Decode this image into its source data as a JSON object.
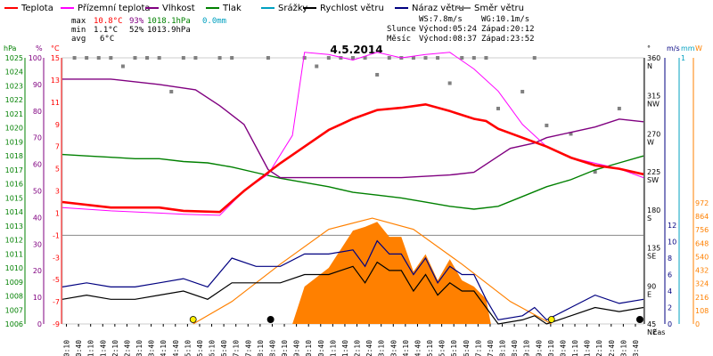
{
  "chart_data": {
    "type": "line",
    "title": "4.5.2014",
    "legend": [
      {
        "label": "Teplota",
        "color": "#ff0000"
      },
      {
        "label": "Přízemní teplota",
        "color": "#ff00ff"
      },
      {
        "label": "Vlhkost",
        "color": "#800080"
      },
      {
        "label": "Tlak",
        "color": "#008000"
      },
      {
        "label": "Srážky",
        "color": "#00a0c0"
      },
      {
        "label": "Rychlost větru",
        "color": "#000000"
      },
      {
        "label": "Náraz větru",
        "color": "#000080"
      },
      {
        "label": "Směr větru",
        "color": "#808080"
      }
    ],
    "stats": {
      "max": {
        "label": "max",
        "temp": "10.8°C",
        "hum": "93%",
        "press": "1018.1hPa",
        "rain": "0.0mm"
      },
      "min": {
        "label": "min",
        "temp": "1.1°C",
        "hum": "52%",
        "press": "1013.9hPa"
      },
      "avg": {
        "label": "avg",
        "temp": "6°C"
      }
    },
    "wind_info": {
      "ws": "WS:7.8m/s",
      "wg": "WG:10.1m/s"
    },
    "sun": {
      "label": "Slunce",
      "rise": "Východ:05:24",
      "set": "Západ:20:12"
    },
    "moon": {
      "label": "Měsíc",
      "rise": "Východ:08:37",
      "set": "Západ:23:52"
    },
    "axes": {
      "hpa": {
        "label": "hPa",
        "ticks": [
          "1025",
          "1024",
          "1023",
          "1022",
          "1021",
          "1020",
          "1019",
          "1018",
          "1017",
          "1016",
          "1015",
          "1014",
          "1013",
          "1012",
          "1011",
          "1010",
          "1009",
          "1008",
          "1007",
          "1006"
        ]
      },
      "pct": {
        "label": "%",
        "ticks": [
          "100",
          "90",
          "80",
          "70",
          "60",
          "50",
          "40",
          "30",
          "20",
          "10",
          "0"
        ]
      },
      "degc": {
        "label": "°C",
        "ticks": [
          "15",
          "13",
          "11",
          "9",
          "7",
          "5",
          "3",
          "1",
          "-1",
          "-3",
          "-5",
          "-7",
          "-9"
        ],
        "range": [
          -9,
          15
        ]
      },
      "deg": {
        "label": "°",
        "ticks": [
          "360",
          "315",
          "270",
          "225",
          "180",
          "135",
          "90",
          "45"
        ],
        "dirs": [
          "N",
          "NW",
          "W",
          "SW",
          "S",
          "SE",
          "E",
          "NE"
        ]
      },
      "ms": {
        "label": "m/s",
        "ticks": [
          "12",
          "10",
          "8",
          "6",
          "4",
          "2",
          "0"
        ]
      },
      "mm": {
        "label": "mm",
        "ticks": [
          "1"
        ]
      },
      "wm2": {
        "label": "W",
        "ticks": [
          "972",
          "864",
          "756",
          "648",
          "540",
          "432",
          "324",
          "216",
          "108",
          "0"
        ]
      },
      "x_label": "čas",
      "x_ticks": [
        "00:10",
        "00:40",
        "01:10",
        "01:40",
        "02:10",
        "02:40",
        "03:10",
        "03:40",
        "04:10",
        "04:40",
        "05:10",
        "05:40",
        "06:10",
        "06:40",
        "07:10",
        "07:40",
        "08:10",
        "08:40",
        "09:10",
        "09:40",
        "10:10",
        "10:40",
        "11:10",
        "11:40",
        "12:10",
        "12:40",
        "13:10",
        "13:40",
        "14:10",
        "14:40",
        "15:10",
        "15:40",
        "16:10",
        "16:40",
        "17:10",
        "17:40",
        "18:10",
        "18:40",
        "19:10",
        "19:40",
        "20:10",
        "20:40",
        "21:10",
        "21:40",
        "22:10",
        "22:40",
        "23:10",
        "23:40"
      ]
    },
    "series": {
      "temperature": {
        "name": "Teplota",
        "unit": "°C",
        "x": [
          0,
          2,
          4,
          5,
          6.5,
          7.5,
          9,
          10,
          11,
          12,
          13,
          14,
          15,
          16,
          17,
          17.5,
          18,
          20,
          21,
          22,
          23,
          24
        ],
        "y": [
          2,
          1.5,
          1.5,
          1.2,
          1.1,
          3,
          5.5,
          7,
          8.5,
          9.5,
          10.3,
          10.5,
          10.8,
          10.2,
          9.5,
          9.3,
          8.6,
          7,
          6,
          5.3,
          5,
          4.5
        ]
      },
      "ground_temperature": {
        "name": "Přízemní teplota",
        "unit": "°C",
        "x": [
          0,
          2,
          4,
          5,
          6.5,
          7.5,
          8.5,
          9.5,
          10,
          11,
          12,
          13,
          14,
          15,
          16,
          17,
          18,
          18.5,
          19,
          20,
          21,
          22,
          23,
          24
        ],
        "y": [
          1.5,
          1.2,
          1,
          0.9,
          0.8,
          3,
          4.5,
          8,
          15.5,
          15.3,
          14.8,
          15.5,
          15,
          15.3,
          15.5,
          14,
          12,
          10.5,
          9,
          7,
          6,
          5.5,
          5,
          4.2
        ]
      },
      "humidity": {
        "name": "Vlhkost",
        "unit": "%",
        "x": [
          0,
          2,
          4,
          5.5,
          6.5,
          7.5,
          8.5,
          9,
          10,
          12,
          14,
          16,
          17,
          18,
          18.5,
          19.5,
          20,
          21,
          22,
          23,
          24
        ],
        "y": [
          92,
          92,
          90,
          88,
          82,
          75,
          58,
          55,
          55,
          55,
          55,
          56,
          57,
          63,
          66,
          68,
          70,
          72,
          74,
          77,
          76
        ]
      },
      "pressure": {
        "name": "Tlak",
        "unit": "hPa",
        "x": [
          0,
          1,
          2,
          3,
          4,
          5,
          6,
          7,
          8,
          9,
          10,
          11,
          12,
          13,
          14,
          15,
          16,
          17,
          18,
          19,
          20,
          21,
          22,
          23,
          24
        ],
        "y": [
          1018.1,
          1018,
          1017.9,
          1017.8,
          1017.8,
          1017.6,
          1017.5,
          1017.2,
          1016.8,
          1016.4,
          1016.1,
          1015.8,
          1015.4,
          1015.2,
          1015,
          1014.7,
          1014.4,
          1014.2,
          1014.4,
          1015.1,
          1015.8,
          1016.3,
          1017,
          1017.5,
          1018
        ]
      },
      "wind_speed": {
        "name": "Rychlost větru",
        "unit": "m/s",
        "x": [
          0,
          1,
          2,
          3,
          4,
          5,
          6,
          7,
          8,
          9,
          10,
          11,
          12,
          12.5,
          13,
          13.5,
          14,
          14.5,
          15,
          15.5,
          16,
          16.5,
          17,
          17.5,
          18,
          19,
          19.5,
          20,
          21,
          22,
          23,
          24
        ],
        "y": [
          3,
          3.5,
          3,
          3,
          3.5,
          4,
          3,
          5,
          5,
          5,
          6,
          6,
          7,
          5,
          7.5,
          6.5,
          6.5,
          4,
          6,
          3.5,
          5,
          4,
          4,
          2,
          0,
          0.5,
          1,
          0,
          1,
          2,
          1.5,
          2
        ]
      },
      "wind_gust": {
        "name": "Náraz větru",
        "unit": "m/s",
        "x": [
          0,
          1,
          2,
          3,
          4,
          5,
          6,
          7,
          8,
          9,
          10,
          11,
          12,
          12.5,
          13,
          13.5,
          14,
          14.5,
          15,
          15.5,
          16,
          16.5,
          17,
          17.5,
          18,
          19,
          19.5,
          20,
          21,
          22,
          23,
          24
        ],
        "y": [
          4.5,
          5,
          4.5,
          4.5,
          5,
          5.5,
          4.5,
          8,
          7,
          7,
          8.5,
          8.5,
          9,
          7,
          10.1,
          8.5,
          8.5,
          6,
          8,
          5,
          7,
          6,
          6,
          3,
          0.5,
          1,
          2,
          0.5,
          2,
          3.5,
          2.5,
          3
        ]
      },
      "solar": {
        "name": "W",
        "unit": "W",
        "x": [
          9.5,
          10,
          11,
          12,
          12.5,
          13,
          13.5,
          14,
          14.5,
          15,
          15.5,
          16,
          16.5,
          17,
          17.5,
          17.7
        ],
        "y": [
          0,
          300,
          450,
          750,
          780,
          820,
          700,
          700,
          420,
          560,
          350,
          520,
          350,
          300,
          200,
          0
        ]
      },
      "theoretical_solar": {
        "unit": "W",
        "x": [
          5.4,
          7,
          9,
          11,
          12.8,
          14.5,
          16.5,
          18.5,
          20.2
        ],
        "y": [
          0,
          180,
          480,
          760,
          850,
          760,
          480,
          180,
          0
        ]
      },
      "wind_direction": {
        "name": "Směr větru",
        "unit": "°",
        "x": [
          0.5,
          1,
          1.5,
          2,
          2.5,
          3,
          3.5,
          4,
          4.5,
          5,
          5.5,
          6.5,
          7,
          8.5,
          10,
          10.5,
          11,
          11.5,
          12,
          12.5,
          13,
          13.5,
          14,
          14.5,
          15,
          15.5,
          16,
          16.5,
          17,
          17.5,
          18,
          19,
          19.5,
          20,
          21,
          22,
          23
        ],
        "y": [
          360,
          360,
          360,
          360,
          350,
          360,
          360,
          360,
          320,
          360,
          360,
          360,
          360,
          360,
          360,
          350,
          360,
          360,
          360,
          360,
          340,
          360,
          360,
          360,
          360,
          360,
          330,
          360,
          360,
          360,
          300,
          320,
          360,
          280,
          270,
          225,
          300
        ]
      }
    }
  }
}
